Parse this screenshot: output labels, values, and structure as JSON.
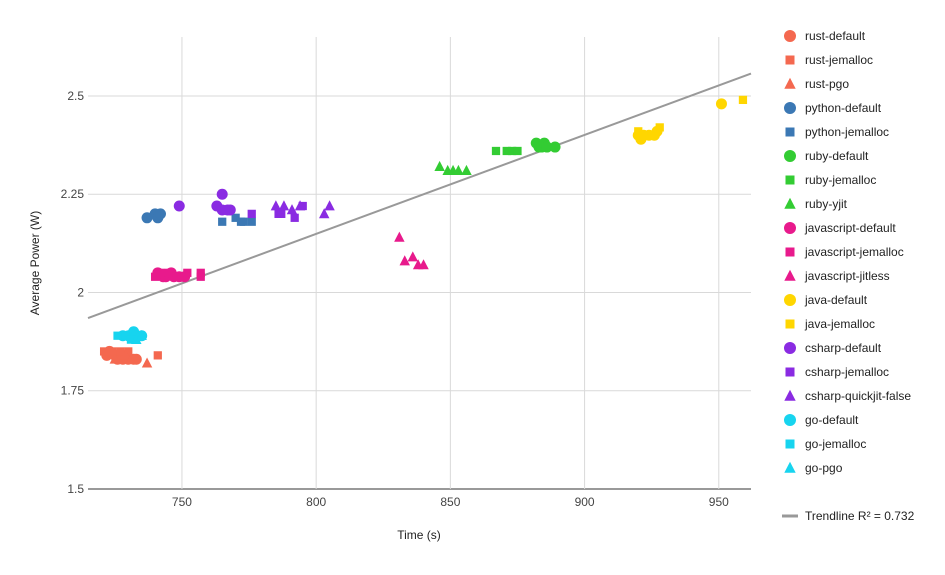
{
  "chart_data": {
    "type": "scatter",
    "xlabel": "Time (s)",
    "ylabel": "Average Power (W)",
    "xlim": [
      715,
      962
    ],
    "ylim": [
      1.5,
      2.65
    ],
    "x_ticks": [
      750,
      800,
      850,
      900,
      950
    ],
    "y_ticks": [
      1.5,
      1.75,
      2.0,
      2.25,
      2.5
    ],
    "grid": true,
    "legend_position": "right",
    "series": [
      {
        "name": "rust-default",
        "color": "#f4684f",
        "marker": "circle",
        "points": [
          [
            722,
            1.84
          ],
          [
            723,
            1.85
          ],
          [
            725,
            1.84
          ],
          [
            726,
            1.83
          ],
          [
            728,
            1.83
          ],
          [
            729,
            1.84
          ],
          [
            730,
            1.83
          ],
          [
            732,
            1.83
          ],
          [
            733,
            1.83
          ]
        ]
      },
      {
        "name": "rust-jemalloc",
        "color": "#f4684f",
        "marker": "square",
        "points": [
          [
            721,
            1.85
          ],
          [
            724,
            1.85
          ],
          [
            727,
            1.85
          ],
          [
            730,
            1.85
          ],
          [
            741,
            1.84
          ]
        ]
      },
      {
        "name": "rust-pgo",
        "color": "#f4684f",
        "marker": "triangle",
        "points": [
          [
            725,
            1.83
          ],
          [
            729,
            1.84
          ],
          [
            731,
            1.83
          ],
          [
            737,
            1.82
          ]
        ]
      },
      {
        "name": "python-default",
        "color": "#3b78b4",
        "marker": "circle",
        "points": [
          [
            737,
            2.19
          ],
          [
            740,
            2.2
          ],
          [
            741,
            2.19
          ],
          [
            742,
            2.2
          ]
        ]
      },
      {
        "name": "python-jemalloc",
        "color": "#3b78b4",
        "marker": "square",
        "points": [
          [
            765,
            2.18
          ],
          [
            770,
            2.19
          ],
          [
            772,
            2.18
          ],
          [
            773,
            2.18
          ],
          [
            776,
            2.18
          ]
        ]
      },
      {
        "name": "ruby-default",
        "color": "#33cc33",
        "marker": "circle",
        "points": [
          [
            882,
            2.38
          ],
          [
            883,
            2.37
          ],
          [
            884,
            2.37
          ],
          [
            885,
            2.38
          ],
          [
            886,
            2.37
          ],
          [
            889,
            2.37
          ]
        ]
      },
      {
        "name": "ruby-jemalloc",
        "color": "#33cc33",
        "marker": "square",
        "points": [
          [
            867,
            2.36
          ],
          [
            871,
            2.36
          ],
          [
            873,
            2.36
          ],
          [
            875,
            2.36
          ]
        ]
      },
      {
        "name": "ruby-yjit",
        "color": "#33cc33",
        "marker": "triangle",
        "points": [
          [
            846,
            2.32
          ],
          [
            849,
            2.31
          ],
          [
            851,
            2.31
          ],
          [
            853,
            2.31
          ],
          [
            856,
            2.31
          ]
        ]
      },
      {
        "name": "javascript-default",
        "color": "#e81a8c",
        "marker": "circle",
        "points": [
          [
            741,
            2.05
          ],
          [
            743,
            2.04
          ],
          [
            744,
            2.04
          ],
          [
            746,
            2.05
          ],
          [
            747,
            2.04
          ],
          [
            749,
            2.04
          ],
          [
            751,
            2.04
          ]
        ]
      },
      {
        "name": "javascript-jemalloc",
        "color": "#e81a8c",
        "marker": "square",
        "points": [
          [
            740,
            2.04
          ],
          [
            742,
            2.05
          ],
          [
            745,
            2.05
          ],
          [
            748,
            2.04
          ],
          [
            752,
            2.05
          ],
          [
            757,
            2.04
          ],
          [
            757,
            2.05
          ]
        ]
      },
      {
        "name": "javascript-jitless",
        "color": "#e81a8c",
        "marker": "triangle",
        "points": [
          [
            831,
            2.14
          ],
          [
            833,
            2.08
          ],
          [
            836,
            2.09
          ],
          [
            838,
            2.07
          ],
          [
            840,
            2.07
          ]
        ]
      },
      {
        "name": "java-default",
        "color": "#ffd600",
        "marker": "circle",
        "points": [
          [
            920,
            2.4
          ],
          [
            921,
            2.39
          ],
          [
            922,
            2.4
          ],
          [
            924,
            2.4
          ],
          [
            926,
            2.4
          ],
          [
            927,
            2.41
          ],
          [
            951,
            2.48
          ]
        ]
      },
      {
        "name": "java-jemalloc",
        "color": "#ffd600",
        "marker": "square",
        "points": [
          [
            920,
            2.41
          ],
          [
            921,
            2.4
          ],
          [
            925,
            2.4
          ],
          [
            928,
            2.42
          ],
          [
            959,
            2.49
          ]
        ]
      },
      {
        "name": "csharp-default",
        "color": "#8a2be2",
        "marker": "circle",
        "points": [
          [
            749,
            2.22
          ],
          [
            763,
            2.22
          ],
          [
            765,
            2.25
          ],
          [
            765,
            2.21
          ],
          [
            767,
            2.21
          ],
          [
            768,
            2.21
          ]
        ]
      },
      {
        "name": "csharp-jemalloc",
        "color": "#8a2be2",
        "marker": "square",
        "points": [
          [
            766,
            2.21
          ],
          [
            776,
            2.2
          ],
          [
            786,
            2.2
          ],
          [
            787,
            2.2
          ],
          [
            792,
            2.19
          ],
          [
            795,
            2.22
          ]
        ]
      },
      {
        "name": "csharp-quickjit-false",
        "color": "#8a2be2",
        "marker": "triangle",
        "points": [
          [
            785,
            2.22
          ],
          [
            788,
            2.22
          ],
          [
            791,
            2.21
          ],
          [
            794,
            2.22
          ],
          [
            803,
            2.2
          ],
          [
            805,
            2.22
          ]
        ]
      },
      {
        "name": "go-default",
        "color": "#17d4ef",
        "marker": "circle",
        "points": [
          [
            728,
            1.89
          ],
          [
            730,
            1.89
          ],
          [
            732,
            1.9
          ],
          [
            733,
            1.89
          ],
          [
            735,
            1.89
          ]
        ]
      },
      {
        "name": "go-jemalloc",
        "color": "#17d4ef",
        "marker": "square",
        "points": [
          [
            726,
            1.89
          ],
          [
            729,
            1.89
          ],
          [
            731,
            1.88
          ]
        ]
      },
      {
        "name": "go-pgo",
        "color": "#17d4ef",
        "marker": "triangle",
        "points": [
          [
            733,
            1.88
          ],
          [
            735,
            1.89
          ]
        ]
      }
    ],
    "trendline": {
      "name": "Trendline R² = 0.732",
      "color": "#999999",
      "x": [
        715,
        962
      ],
      "y": [
        1.935,
        2.557
      ]
    }
  }
}
